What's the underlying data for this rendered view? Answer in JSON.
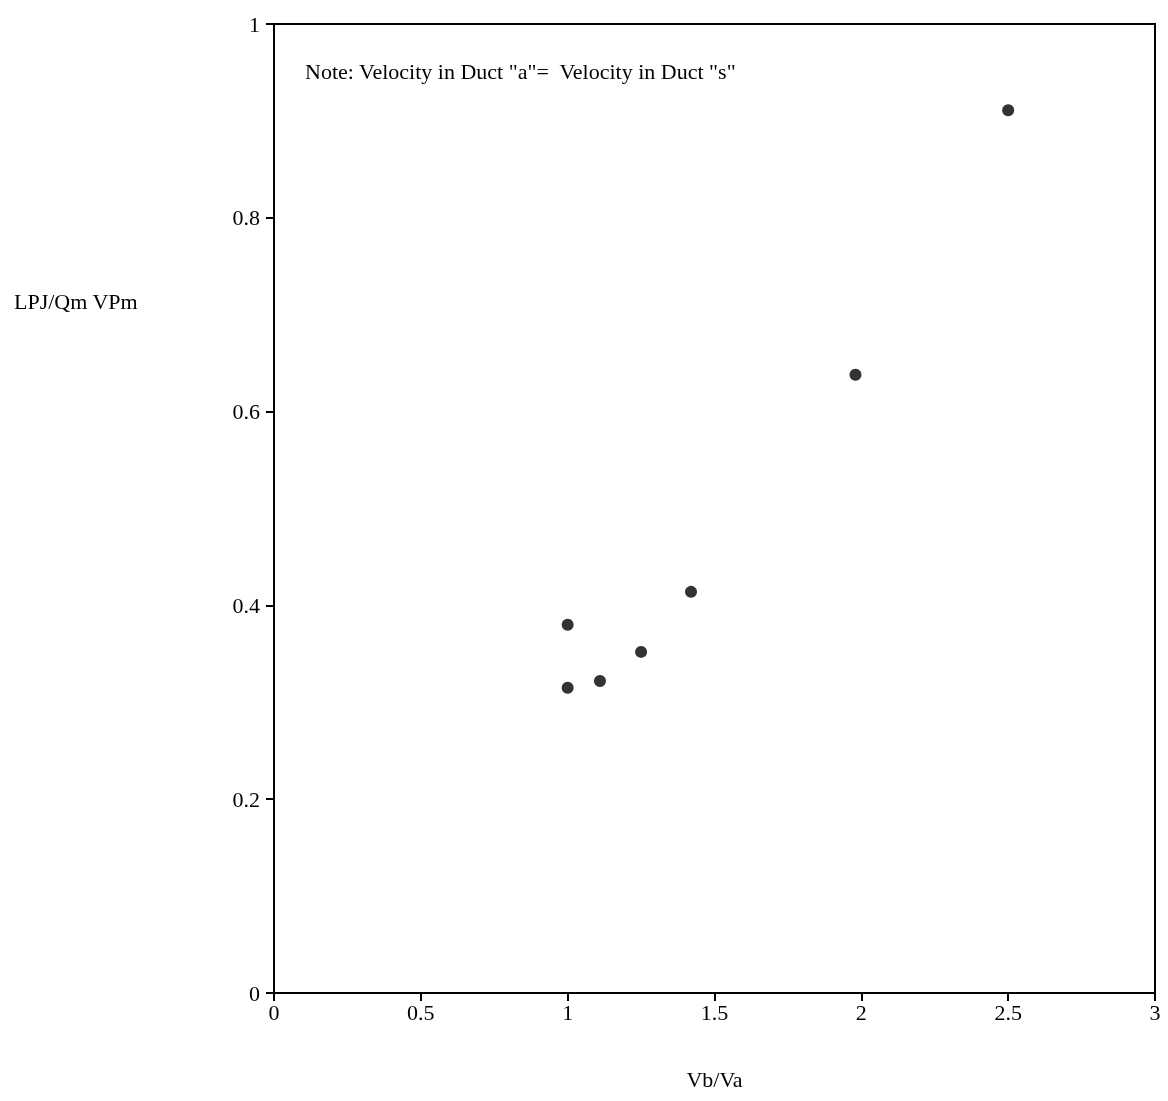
{
  "chart_data": {
    "type": "scatter",
    "xlabel": "Vb/Va",
    "ylabel": "LPJ/Qm VPm",
    "annotations": [
      "Note: Velocity in Duct \"a\"=  Velocity in Duct \"s\""
    ],
    "series": [
      {
        "color": "#000000",
        "x": [
          1.0,
          1.0,
          1.11,
          1.25,
          1.42,
          1.98,
          2.5
        ],
        "values": [
          0.38,
          0.315,
          0.322,
          0.352,
          0.414,
          0.638,
          0.911
        ]
      }
    ],
    "xlim": [
      0,
      3
    ],
    "xticks": [
      0,
      0.5,
      1,
      1.5,
      2,
      2.5,
      3
    ],
    "ylim": [
      0,
      1
    ],
    "yticks": [
      0,
      0.2,
      0.4,
      0.6,
      0.8,
      1
    ],
    "grid": false,
    "marker": "circle"
  }
}
